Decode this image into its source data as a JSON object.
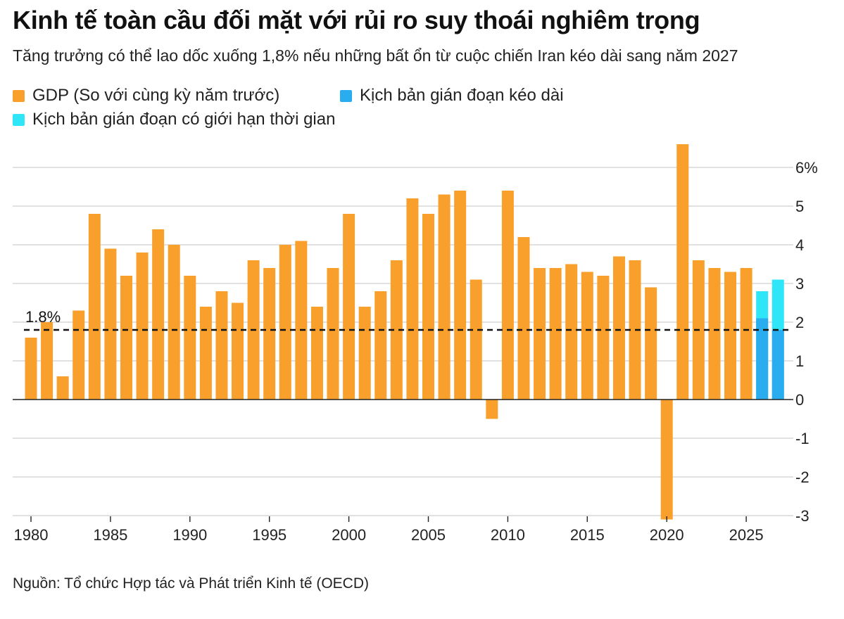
{
  "title": "Kinh tế toàn cầu đối mặt với rủi ro suy thoái nghiêm trọng",
  "subtitle": "Tăng trưởng có thể lao dốc xuống 1,8% nếu những bất ổn từ cuộc chiến Iran kéo dài sang năm 2027",
  "source": "Nguồn: Tổ chức Hợp tác và Phát triển Kinh tế (OECD)",
  "colors": {
    "gdp": "#F8A02B",
    "prolonged": "#2AADEF",
    "limited": "#2EE6F7",
    "grid": "#cfcfcf",
    "zero_line": "#222222",
    "reference_line": "#111111"
  },
  "legend": [
    {
      "label": "GDP (So với cùng kỳ năm trước)",
      "color_key": "gdp"
    },
    {
      "label": "Kịch bản gián đoạn kéo dài",
      "color_key": "prolonged"
    },
    {
      "label": "Kịch bản gián đoạn có giới hạn thời gian",
      "color_key": "limited"
    }
  ],
  "chart_data": {
    "type": "bar",
    "title": "Kinh tế toàn cầu đối mặt với rủi ro suy thoái nghiêm trọng",
    "xlabel": "",
    "ylabel": "",
    "ylim": [
      -3,
      6.6
    ],
    "y_ticks": [
      {
        "value": 6,
        "label": "6%"
      },
      {
        "value": 5,
        "label": "5"
      },
      {
        "value": 4,
        "label": "4"
      },
      {
        "value": 3,
        "label": "3"
      },
      {
        "value": 2,
        "label": "2"
      },
      {
        "value": 1,
        "label": "1"
      },
      {
        "value": 0,
        "label": "0"
      },
      {
        "value": -1,
        "label": "-1"
      },
      {
        "value": -2,
        "label": "-2"
      },
      {
        "value": -3,
        "label": "-3"
      }
    ],
    "x_ticks": [
      {
        "value": 1980,
        "label": "1980"
      },
      {
        "value": 1985,
        "label": "1985"
      },
      {
        "value": 1990,
        "label": "1990"
      },
      {
        "value": 1995,
        "label": "1995"
      },
      {
        "value": 2000,
        "label": "2000"
      },
      {
        "value": 2005,
        "label": "2005"
      },
      {
        "value": 2010,
        "label": "2010"
      },
      {
        "value": 2015,
        "label": "2015"
      },
      {
        "value": 2020,
        "label": "2020"
      },
      {
        "value": 2025,
        "label": "2025"
      }
    ],
    "grid": true,
    "legend_position": "top-left",
    "axis_position": "right",
    "reference_line": {
      "value": 1.8,
      "label": "1.8%",
      "style": "dashed"
    },
    "series": [
      {
        "name": "GDP (So với cùng kỳ năm trước)",
        "color_key": "gdp",
        "x": [
          1980,
          1981,
          1982,
          1983,
          1984,
          1985,
          1986,
          1987,
          1988,
          1989,
          1990,
          1991,
          1992,
          1993,
          1994,
          1995,
          1996,
          1997,
          1998,
          1999,
          2000,
          2001,
          2002,
          2003,
          2004,
          2005,
          2006,
          2007,
          2008,
          2009,
          2010,
          2011,
          2012,
          2013,
          2014,
          2015,
          2016,
          2017,
          2018,
          2019,
          2020,
          2021,
          2022,
          2023,
          2024,
          2025
        ],
        "values": [
          1.6,
          2.0,
          0.6,
          2.3,
          4.8,
          3.9,
          3.2,
          3.8,
          4.4,
          4.0,
          3.2,
          2.4,
          2.8,
          2.5,
          3.6,
          3.4,
          4.0,
          4.1,
          2.4,
          3.4,
          4.8,
          2.4,
          2.8,
          3.6,
          5.2,
          4.8,
          5.3,
          5.4,
          3.1,
          -0.5,
          5.4,
          4.2,
          3.4,
          3.4,
          3.5,
          3.3,
          3.2,
          3.7,
          3.6,
          2.9,
          -3.1,
          6.6,
          3.6,
          3.4,
          3.3,
          3.4
        ]
      },
      {
        "name": "Kịch bản gián đoạn kéo dài",
        "color_key": "prolonged",
        "x": [
          2026,
          2027
        ],
        "values": [
          2.1,
          1.8
        ]
      },
      {
        "name": "Kịch bản gián đoạn có giới hạn thời gian",
        "color_key": "limited",
        "x": [
          2026,
          2027
        ],
        "values": [
          2.8,
          3.1
        ]
      }
    ]
  }
}
